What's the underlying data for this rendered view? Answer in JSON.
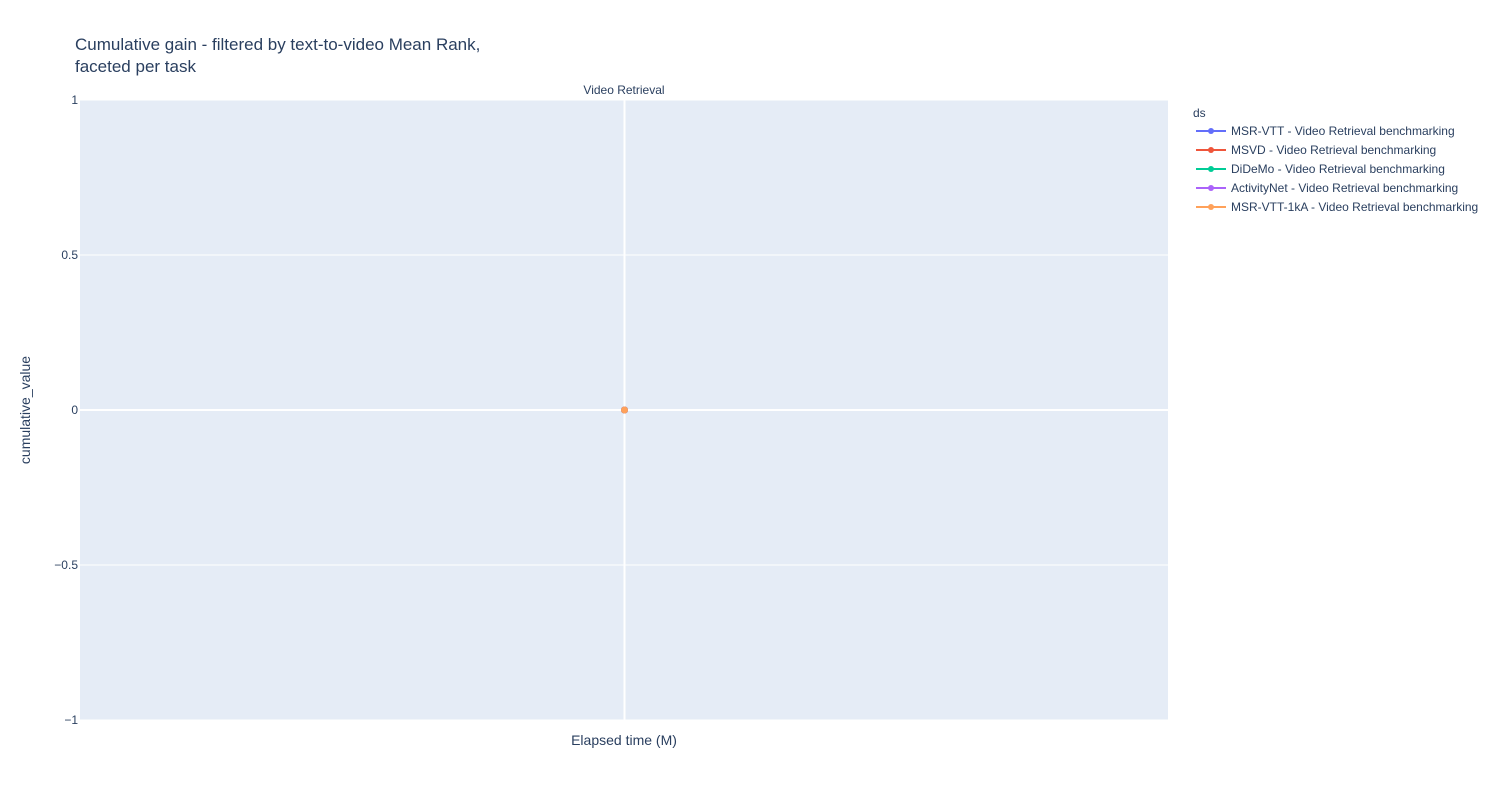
{
  "chart_data": {
    "type": "line",
    "title_lines": [
      "Cumulative gain - filtered by text-to-video Mean Rank,",
      "faceted per task"
    ],
    "facet": "Video Retrieval",
    "xlabel": "Elapsed time (M)",
    "ylabel": "cumulative_value",
    "ylim": [
      -1,
      1
    ],
    "yticks": [
      1,
      0.5,
      0,
      -0.5,
      -1
    ],
    "ytick_labels": [
      "1",
      "0.5",
      "0",
      "−0.5",
      "−1"
    ],
    "grid": true,
    "legend_title": "ds",
    "legend_position": "right",
    "series": [
      {
        "name": "MSR-VTT - Video Retrieval benchmarking",
        "color": "#636efa",
        "x": [
          0
        ],
        "y": [
          0
        ]
      },
      {
        "name": "MSVD - Video Retrieval benchmarking",
        "color": "#ef553b",
        "x": [
          0
        ],
        "y": [
          0
        ]
      },
      {
        "name": "DiDeMo - Video Retrieval benchmarking",
        "color": "#00cc96",
        "x": [
          0
        ],
        "y": [
          0
        ]
      },
      {
        "name": "ActivityNet - Video Retrieval benchmarking",
        "color": "#ab63fa",
        "x": [
          0
        ],
        "y": [
          0
        ]
      },
      {
        "name": "MSR-VTT-1kA - Video Retrieval benchmarking",
        "color": "#ffa15a",
        "x": [
          0
        ],
        "y": [
          0
        ]
      }
    ],
    "colors": {
      "plot_background": "#e5ecf6",
      "grid": "#ffffff",
      "text": "#2a3f5f"
    }
  }
}
